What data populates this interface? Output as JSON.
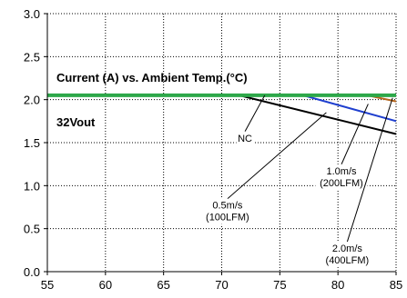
{
  "chart_data": {
    "type": "line",
    "title": "Current (A) vs. Ambient Temp.(°C)",
    "subtitle": "32Vout",
    "xlim": [
      55,
      85
    ],
    "ylim": [
      0.0,
      3.0
    ],
    "x_ticks": [
      "55",
      "60",
      "65",
      "70",
      "75",
      "80",
      "85"
    ],
    "y_ticks": [
      "0.0",
      "0.5",
      "1.0",
      "1.5",
      "2.0",
      "2.5",
      "3.0"
    ],
    "grid": true,
    "series": [
      {
        "name": "NC",
        "color": "#000000",
        "x": [
          55,
          71.5,
          85
        ],
        "y": [
          2.05,
          2.05,
          1.6
        ]
      },
      {
        "name": "0.5m/s (100LFM)",
        "color": "#1f3fcf",
        "x": [
          55,
          77,
          85
        ],
        "y": [
          2.05,
          2.05,
          1.75
        ]
      },
      {
        "name": "1.0m/s (200LFM)",
        "color": "#b5651d",
        "x": [
          55,
          82.5,
          85
        ],
        "y": [
          2.05,
          2.05,
          1.98
        ]
      },
      {
        "name": "2.0m/s (400LFM)",
        "color": "#2ea84a",
        "x": [
          55,
          85
        ],
        "y": [
          2.05,
          2.05
        ]
      }
    ],
    "annotations": [
      {
        "lines": [
          "NC"
        ],
        "x": 73.7,
        "y": 2.05,
        "label_x": 72.0,
        "label_y": 1.55
      },
      {
        "lines": [
          "1.0m/s",
          "(200LFM)"
        ],
        "x": 82.6,
        "y": 1.95,
        "label_x": 80.3,
        "label_y": 1.1
      },
      {
        "lines": [
          "0.5m/s",
          "(100LFM)"
        ],
        "x": 79.0,
        "y": 1.85,
        "label_x": 70.5,
        "label_y": 0.7
      },
      {
        "lines": [
          "2.0m/s",
          "(400LFM)"
        ],
        "x": 84.7,
        "y": 2.02,
        "label_x": 80.8,
        "label_y": 0.2
      }
    ]
  }
}
